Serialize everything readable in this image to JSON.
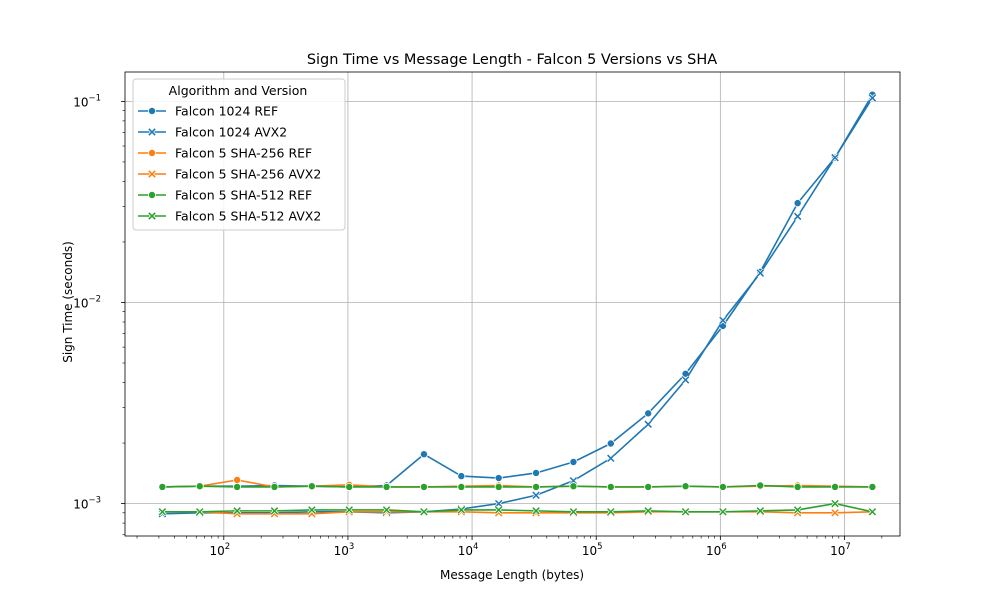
{
  "chart_data": {
    "type": "line",
    "title": "Sign Time vs Message Length - Falcon 5 Versions vs SHA",
    "xlabel": "Message Length (bytes)",
    "ylabel": "Sign Time (seconds)",
    "xscale": "log",
    "yscale": "log",
    "xlim": [
      16,
      28000000
    ],
    "ylim": [
      0.00069,
      0.14
    ],
    "grid": true,
    "legend_title": "Algorithm and Version",
    "legend_position": "upper-left",
    "x_ticks": [
      {
        "value": 100,
        "base": "10",
        "exp": "2"
      },
      {
        "value": 1000,
        "base": "10",
        "exp": "3"
      },
      {
        "value": 10000,
        "base": "10",
        "exp": "4"
      },
      {
        "value": 100000,
        "base": "10",
        "exp": "5"
      },
      {
        "value": 1000000,
        "base": "10",
        "exp": "6"
      },
      {
        "value": 10000000,
        "base": "10",
        "exp": "7"
      }
    ],
    "y_ticks": [
      {
        "value": 0.001,
        "base": "10",
        "exp": "−3"
      },
      {
        "value": 0.01,
        "base": "10",
        "exp": "−2"
      },
      {
        "value": 0.1,
        "base": "10",
        "exp": "−1"
      }
    ],
    "x": [
      32,
      64,
      128,
      256,
      512,
      1024,
      2048,
      4096,
      8192,
      16384,
      32768,
      65536,
      131072,
      262144,
      524288,
      1048576,
      2097152,
      4194304,
      8388608,
      16777216
    ],
    "series": [
      {
        "name": "Falcon 1024 REF",
        "color": "#1f77b4",
        "marker": "circle",
        "values": [
          0.00121,
          0.00122,
          0.00122,
          0.00123,
          0.00122,
          0.00121,
          0.00123,
          0.00176,
          0.00137,
          0.00134,
          0.00142,
          0.00161,
          0.00199,
          0.00281,
          0.00442,
          0.00765,
          0.0142,
          0.0312,
          0.0525,
          0.108
        ]
      },
      {
        "name": "Falcon 1024 AVX2",
        "color": "#1f77b4",
        "marker": "x",
        "values": [
          0.00089,
          0.0009,
          0.0009,
          0.0009,
          0.00091,
          0.00091,
          0.0009,
          0.00091,
          0.00094,
          0.001,
          0.0011,
          0.0013,
          0.00168,
          0.00248,
          0.00412,
          0.00815,
          0.014,
          0.0268,
          0.0525,
          0.104
        ]
      },
      {
        "name": "Falcon 5 SHA-256 REF",
        "color": "#ff7f0e",
        "marker": "circle",
        "values": [
          0.00121,
          0.00122,
          0.00131,
          0.00121,
          0.00122,
          0.00124,
          0.00121,
          0.00121,
          0.00122,
          0.00123,
          0.00121,
          0.00122,
          0.00121,
          0.00121,
          0.00122,
          0.00121,
          0.00122,
          0.00123,
          0.00122,
          0.00121
        ]
      },
      {
        "name": "Falcon 5 SHA-256 AVX2",
        "color": "#ff7f0e",
        "marker": "x",
        "values": [
          0.00091,
          0.00091,
          0.00089,
          0.00089,
          0.00089,
          0.00091,
          0.00091,
          0.00091,
          0.00091,
          0.0009,
          0.0009,
          0.0009,
          0.0009,
          0.00091,
          0.00091,
          0.00091,
          0.00091,
          0.0009,
          0.0009,
          0.00091
        ]
      },
      {
        "name": "Falcon 5 SHA-512 REF",
        "color": "#2ca02c",
        "marker": "circle",
        "values": [
          0.00121,
          0.00122,
          0.00121,
          0.00121,
          0.00122,
          0.00121,
          0.00121,
          0.00121,
          0.00121,
          0.00121,
          0.00121,
          0.00122,
          0.00121,
          0.00121,
          0.00122,
          0.00121,
          0.00123,
          0.00121,
          0.00121,
          0.00121
        ]
      },
      {
        "name": "Falcon 5 SHA-512 AVX2",
        "color": "#2ca02c",
        "marker": "x",
        "values": [
          0.00091,
          0.00091,
          0.00092,
          0.00092,
          0.00093,
          0.00093,
          0.00093,
          0.00091,
          0.00093,
          0.00093,
          0.00092,
          0.00091,
          0.00091,
          0.00092,
          0.00091,
          0.00091,
          0.00092,
          0.00093,
          0.001,
          0.00091
        ]
      }
    ]
  }
}
